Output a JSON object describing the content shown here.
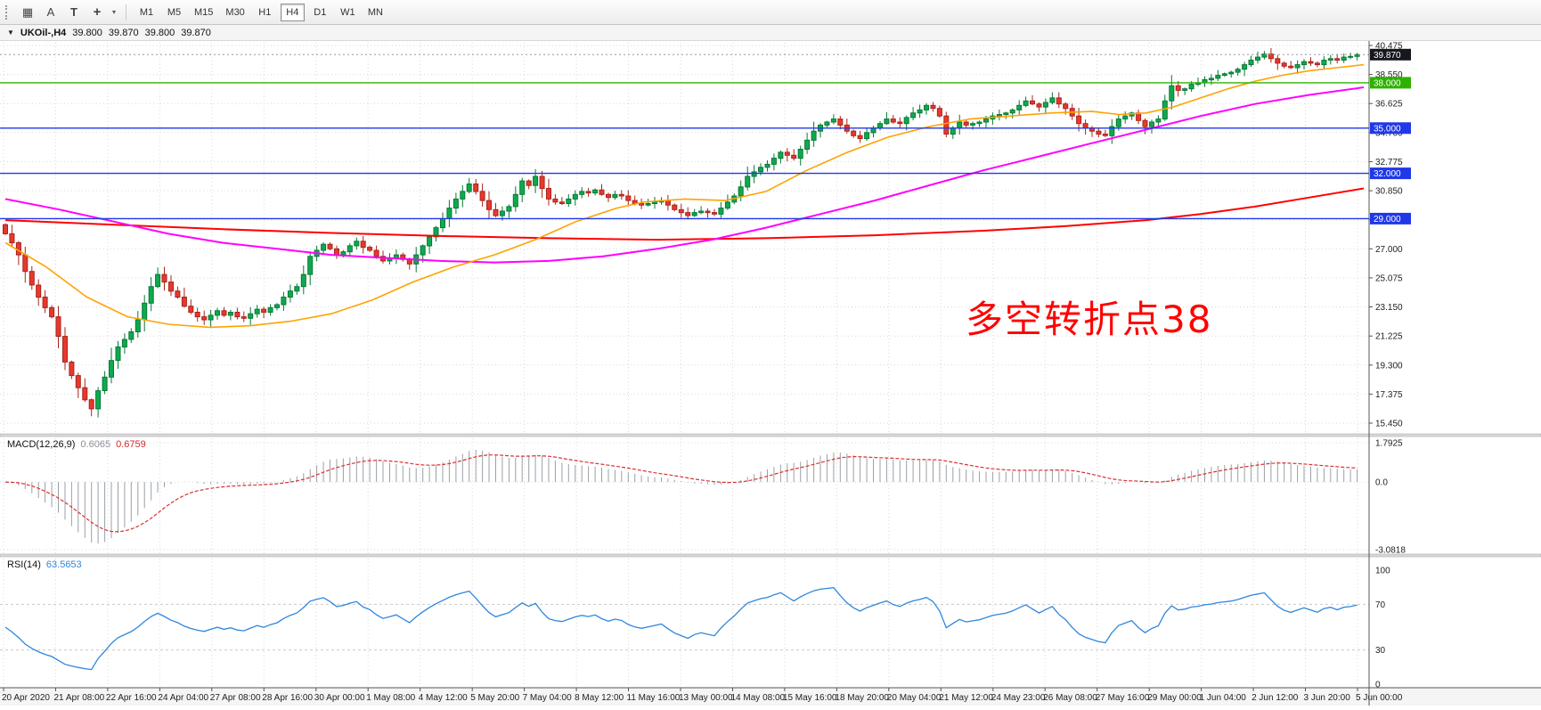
{
  "toolbar": {
    "tools": [
      {
        "name": "charts-grid",
        "glyph": "▦"
      },
      {
        "name": "text-tool",
        "glyph": "A"
      },
      {
        "name": "label-tool",
        "glyph": "T"
      },
      {
        "name": "crosshair-tool",
        "glyph": "+"
      },
      {
        "name": "dropdown-caret",
        "glyph": "▾"
      }
    ],
    "timeframes": [
      {
        "label": "M1",
        "active": false
      },
      {
        "label": "M5",
        "active": false
      },
      {
        "label": "M15",
        "active": false
      },
      {
        "label": "M30",
        "active": false
      },
      {
        "label": "H1",
        "active": false
      },
      {
        "label": "H4",
        "active": true
      },
      {
        "label": "D1",
        "active": false
      },
      {
        "label": "W1",
        "active": false
      },
      {
        "label": "MN",
        "active": false
      }
    ]
  },
  "title_bar": {
    "collapse_glyph": "▼",
    "symbol": "UKOil-,H4",
    "open": "39.800",
    "high": "39.870",
    "low": "39.800",
    "close": "39.870"
  },
  "chart": {
    "annotation": {
      "text": "多空转折点38",
      "color": "#FF0000"
    },
    "price_axis": [
      40.475,
      38.55,
      36.625,
      34.7,
      32.775,
      30.85,
      28.925,
      27.0,
      25.075,
      23.15,
      21.225,
      19.3,
      17.375,
      15.45
    ],
    "hlines": [
      {
        "label": "38.000",
        "price": 38.0,
        "color": "#2DB200"
      },
      {
        "label": "35.000",
        "price": 35.0,
        "color": "#2038E8"
      },
      {
        "label": "32.000",
        "price": 32.0,
        "color": "#2038E8"
      },
      {
        "label": "29.000",
        "price": 29.0,
        "color": "#2038E8"
      }
    ],
    "current_price": {
      "label": "39.870",
      "value": 39.87,
      "bg": "#15181d"
    },
    "time_axis": [
      "20 Apr 2020",
      "21 Apr 08:00",
      "22 Apr 16:00",
      "24 Apr 04:00",
      "27 Apr 08:00",
      "28 Apr 16:00",
      "30 Apr 00:00",
      "1 May 08:00",
      "4 May 12:00",
      "5 May 20:00",
      "7 May 04:00",
      "8 May 12:00",
      "11 May 16:00",
      "13 May 00:00",
      "14 May 08:00",
      "15 May 16:00",
      "18 May 20:00",
      "20 May 04:00",
      "21 May 12:00",
      "24 May 23:00",
      "26 May 08:00",
      "27 May 16:00",
      "29 May 00:00",
      "1 Jun 04:00",
      "2 Jun 12:00",
      "3 Jun 20:00",
      "5 Jun 00:00"
    ],
    "colors": {
      "up": "#0FA94E",
      "up_stroke": "#067A36",
      "down": "#E8382C",
      "down_stroke": "#A8241C",
      "ma_fast": "#FFA200",
      "ma_mid": "#FF00FF",
      "ma_slow": "#FF0000",
      "rsi_line": "#2E86DE",
      "macd_hist": "#9AA0A6",
      "macd_signal": "#D93030",
      "grid": "#D9D9D9"
    }
  },
  "chart_data": {
    "type": "candlestick",
    "symbol": "UKOil-",
    "timeframe": "H4",
    "open_first": 28.6,
    "closes": [
      28.0,
      27.4,
      26.6,
      25.5,
      24.6,
      23.8,
      23.1,
      22.5,
      21.2,
      19.5,
      18.6,
      17.8,
      17.0,
      16.4,
      17.6,
      18.5,
      19.6,
      20.5,
      21.0,
      21.5,
      22.3,
      23.4,
      24.5,
      25.3,
      24.8,
      24.2,
      23.8,
      23.2,
      22.8,
      22.5,
      22.3,
      22.6,
      22.9,
      22.6,
      22.8,
      22.5,
      22.4,
      22.7,
      23.0,
      22.8,
      23.1,
      23.3,
      23.8,
      24.2,
      24.5,
      25.3,
      26.5,
      26.9,
      27.3,
      27.0,
      26.6,
      26.8,
      27.2,
      27.5,
      27.1,
      26.9,
      26.5,
      26.2,
      26.4,
      26.6,
      26.3,
      26.0,
      26.6,
      27.2,
      27.8,
      28.4,
      29.0,
      29.7,
      30.3,
      30.8,
      31.3,
      30.8,
      30.2,
      29.6,
      29.2,
      29.5,
      29.8,
      30.6,
      31.5,
      31.2,
      31.8,
      31.0,
      30.3,
      30.1,
      30.0,
      30.3,
      30.6,
      30.8,
      30.7,
      30.9,
      30.6,
      30.4,
      30.6,
      30.5,
      30.2,
      30.0,
      29.9,
      30.0,
      30.1,
      30.2,
      29.9,
      29.6,
      29.4,
      29.2,
      29.4,
      29.5,
      29.4,
      29.3,
      29.7,
      30.1,
      30.5,
      31.1,
      31.8,
      32.1,
      32.4,
      32.6,
      33.0,
      33.4,
      33.2,
      33.0,
      33.6,
      34.2,
      34.8,
      35.2,
      35.4,
      35.6,
      35.2,
      34.8,
      34.5,
      34.3,
      34.7,
      35.0,
      35.3,
      35.6,
      35.4,
      35.3,
      35.7,
      36.0,
      36.2,
      36.5,
      36.3,
      35.8,
      34.6,
      35.0,
      35.4,
      35.2,
      35.3,
      35.4,
      35.6,
      35.8,
      35.9,
      36.0,
      36.2,
      36.5,
      36.8,
      36.6,
      36.4,
      36.7,
      37.0,
      36.6,
      36.3,
      35.8,
      35.3,
      35.0,
      34.8,
      34.6,
      34.5,
      35.1,
      35.6,
      35.8,
      36.0,
      35.5,
      35.1,
      35.4,
      35.6,
      36.8,
      37.8,
      37.5,
      37.6,
      37.9,
      38.0,
      38.2,
      38.3,
      38.5,
      38.6,
      38.7,
      38.9,
      39.2,
      39.5,
      39.7,
      39.9,
      39.6,
      39.3,
      39.1,
      39.0,
      39.2,
      39.4,
      39.3,
      39.2,
      39.5,
      39.6,
      39.5,
      39.7,
      39.75,
      39.87
    ],
    "ma_fast_anchors": [
      [
        0,
        27.4
      ],
      [
        0.03,
        25.8
      ],
      [
        0.06,
        23.8
      ],
      [
        0.09,
        22.5
      ],
      [
        0.12,
        22.0
      ],
      [
        0.15,
        21.8
      ],
      [
        0.18,
        21.9
      ],
      [
        0.21,
        22.2
      ],
      [
        0.24,
        22.7
      ],
      [
        0.27,
        23.6
      ],
      [
        0.3,
        24.8
      ],
      [
        0.33,
        25.8
      ],
      [
        0.36,
        26.6
      ],
      [
        0.39,
        27.6
      ],
      [
        0.42,
        28.8
      ],
      [
        0.45,
        29.7
      ],
      [
        0.47,
        30.1
      ],
      [
        0.5,
        30.3
      ],
      [
        0.53,
        30.2
      ],
      [
        0.56,
        30.8
      ],
      [
        0.59,
        32.2
      ],
      [
        0.62,
        33.4
      ],
      [
        0.65,
        34.4
      ],
      [
        0.68,
        35.1
      ],
      [
        0.71,
        35.6
      ],
      [
        0.74,
        35.8
      ],
      [
        0.77,
        36.0
      ],
      [
        0.8,
        36.1
      ],
      [
        0.82,
        35.9
      ],
      [
        0.84,
        36.0
      ],
      [
        0.86,
        36.4
      ],
      [
        0.88,
        37.0
      ],
      [
        0.9,
        37.6
      ],
      [
        0.92,
        38.1
      ],
      [
        0.94,
        38.5
      ],
      [
        0.96,
        38.8
      ],
      [
        0.98,
        39.0
      ],
      [
        1.0,
        39.2
      ]
    ],
    "ma_mid_anchors": [
      [
        0,
        30.3
      ],
      [
        0.04,
        29.6
      ],
      [
        0.08,
        28.8
      ],
      [
        0.12,
        28.0
      ],
      [
        0.16,
        27.4
      ],
      [
        0.2,
        27.0
      ],
      [
        0.24,
        26.6
      ],
      [
        0.28,
        26.4
      ],
      [
        0.32,
        26.2
      ],
      [
        0.36,
        26.1
      ],
      [
        0.4,
        26.2
      ],
      [
        0.44,
        26.5
      ],
      [
        0.48,
        27.0
      ],
      [
        0.52,
        27.6
      ],
      [
        0.56,
        28.4
      ],
      [
        0.6,
        29.3
      ],
      [
        0.64,
        30.2
      ],
      [
        0.68,
        31.2
      ],
      [
        0.72,
        32.2
      ],
      [
        0.76,
        33.1
      ],
      [
        0.8,
        34.0
      ],
      [
        0.84,
        34.9
      ],
      [
        0.88,
        35.8
      ],
      [
        0.92,
        36.6
      ],
      [
        0.96,
        37.2
      ],
      [
        1.0,
        37.7
      ]
    ],
    "ma_slow_anchors": [
      [
        0,
        28.9
      ],
      [
        0.08,
        28.6
      ],
      [
        0.16,
        28.3
      ],
      [
        0.24,
        28.05
      ],
      [
        0.32,
        27.85
      ],
      [
        0.4,
        27.7
      ],
      [
        0.48,
        27.6
      ],
      [
        0.56,
        27.7
      ],
      [
        0.64,
        27.9
      ],
      [
        0.72,
        28.2
      ],
      [
        0.78,
        28.5
      ],
      [
        0.84,
        28.9
      ],
      [
        0.88,
        29.3
      ],
      [
        0.92,
        29.8
      ],
      [
        0.96,
        30.4
      ],
      [
        1.0,
        31.0
      ]
    ],
    "indicators": {
      "macd": {
        "params": "12,26,9",
        "value_macd": 0.6065,
        "value_signal": 0.6759,
        "axis_max": 1.7925,
        "axis_min": -3.0818
      },
      "rsi": {
        "period": 14,
        "value": 63.5653,
        "levels": [
          70,
          30
        ],
        "range": [
          0,
          100
        ]
      }
    }
  },
  "macd_panel": {
    "name": "MACD(12,26,9)",
    "value_main": "0.6065",
    "value_signal": "0.6759",
    "axis": [
      "1.7925",
      "0.0",
      "-3.0818"
    ],
    "axis_values": [
      1.7925,
      0,
      -3.0818
    ]
  },
  "rsi_panel": {
    "name": "RSI(14)",
    "value": "63.5653",
    "axis": [
      "100",
      "70",
      "30",
      "0"
    ],
    "axis_values": [
      100,
      70,
      30,
      0
    ]
  }
}
